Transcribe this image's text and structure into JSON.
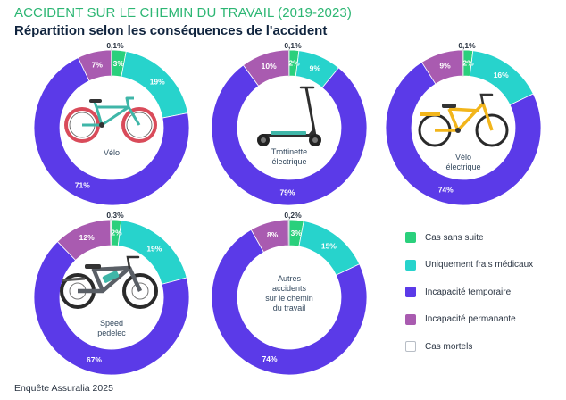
{
  "header": {
    "title": "ACCIDENT SUR LE CHEMIN DU TRAVAIL (2019-2023)",
    "subtitle": "Répartition selon les conséquences de l'accident"
  },
  "colors": {
    "cas_sans_suite": "#2ad07c",
    "frais_medicaux": "#27d3cc",
    "incapacite_temporaire": "#5b3ae8",
    "incapacite_permanente": "#a95bb0",
    "cas_mortels": "#ffffff"
  },
  "legend": [
    {
      "label": "Cas sans suite",
      "color": "#2ad07c"
    },
    {
      "label": "Uniquement frais médicaux",
      "color": "#27d3cc"
    },
    {
      "label": "Incapacité temporaire",
      "color": "#5b3ae8"
    },
    {
      "label": "Incapacité permanante",
      "color": "#a95bb0"
    },
    {
      "label": "Cas mortels",
      "color": "#ffffff"
    }
  ],
  "chart_data": [
    {
      "type": "pie",
      "center_label": "Vélo",
      "illustration": "bicycle-icon",
      "categories": [
        "Cas sans suite",
        "Uniquement frais médicaux",
        "Incapacité temporaire",
        "Incapacité permanante",
        "Cas mortels"
      ],
      "values": [
        3,
        19,
        71,
        7,
        0.1
      ],
      "labels": [
        "3%",
        "19%",
        "71%",
        "7%",
        "0,1%"
      ]
    },
    {
      "type": "pie",
      "center_label": "Trottinette\nélectrique",
      "illustration": "e-scooter-icon",
      "categories": [
        "Cas sans suite",
        "Uniquement frais médicaux",
        "Incapacité temporaire",
        "Incapacité permanante",
        "Cas mortels"
      ],
      "values": [
        2,
        9,
        79,
        10,
        0.1
      ],
      "labels": [
        "2%",
        "9%",
        "79%",
        "10%",
        "0,1%"
      ]
    },
    {
      "type": "pie",
      "center_label": "Vélo\nélectrique",
      "illustration": "e-bike-icon",
      "categories": [
        "Cas sans suite",
        "Uniquement frais médicaux",
        "Incapacité temporaire",
        "Incapacité permanante",
        "Cas mortels"
      ],
      "values": [
        2,
        16,
        74,
        9,
        0.1
      ],
      "labels": [
        "2%",
        "16%",
        "74%",
        "9%",
        "0,1%"
      ]
    },
    {
      "type": "pie",
      "center_label": "Speed\npedelec",
      "illustration": "speed-pedelec-icon",
      "categories": [
        "Cas sans suite",
        "Uniquement frais médicaux",
        "Incapacité temporaire",
        "Incapacité permanante",
        "Cas mortels"
      ],
      "values": [
        2,
        19,
        67,
        12,
        0.3
      ],
      "labels": [
        "2%",
        "19%",
        "67%",
        "12%",
        "0,3%"
      ]
    },
    {
      "type": "pie",
      "center_label": "Autres\naccidents\nsur le chemin\ndu travail",
      "illustration": "",
      "categories": [
        "Cas sans suite",
        "Uniquement frais médicaux",
        "Incapacité temporaire",
        "Incapacité permanante",
        "Cas mortels"
      ],
      "values": [
        3,
        15,
        74,
        8,
        0.2
      ],
      "labels": [
        "3%",
        "15%",
        "74%",
        "8%",
        "0,2%"
      ]
    }
  ],
  "footer": {
    "source": "Enquête Assuralia 2025"
  }
}
